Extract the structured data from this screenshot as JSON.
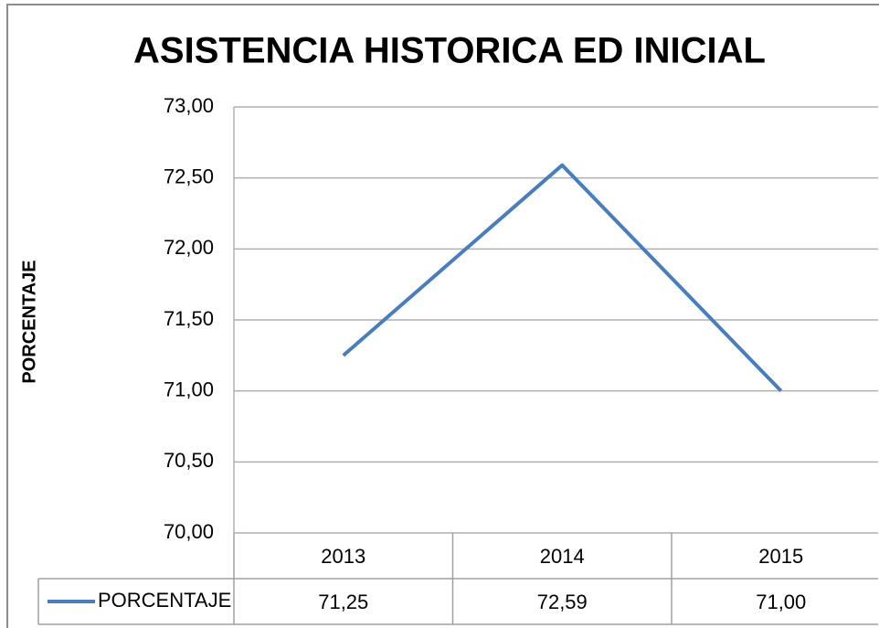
{
  "chart_data": {
    "type": "line",
    "title": "ASISTENCIA HISTORICA ED INICIAL",
    "y_label": "PORCENTAJE",
    "categories": [
      "2013",
      "2014",
      "2015"
    ],
    "series": [
      {
        "name": "PORCENTAJE",
        "color": "#4a7ebb",
        "values": [
          71.25,
          72.59,
          71.0
        ],
        "value_labels": [
          "71,25",
          "72,59",
          "71,00"
        ]
      }
    ],
    "ylim": [
      70,
      73
    ],
    "yticks": [
      {
        "value": 70,
        "label": "70,00"
      },
      {
        "value": 70.5,
        "label": "70,50"
      },
      {
        "value": 71,
        "label": "71,00"
      },
      {
        "value": 71.5,
        "label": "71,50"
      },
      {
        "value": 72,
        "label": "72,00"
      },
      {
        "value": 72.5,
        "label": "72,50"
      },
      {
        "value": 73,
        "label": "73,00"
      }
    ],
    "grid": true,
    "data_table": true
  }
}
